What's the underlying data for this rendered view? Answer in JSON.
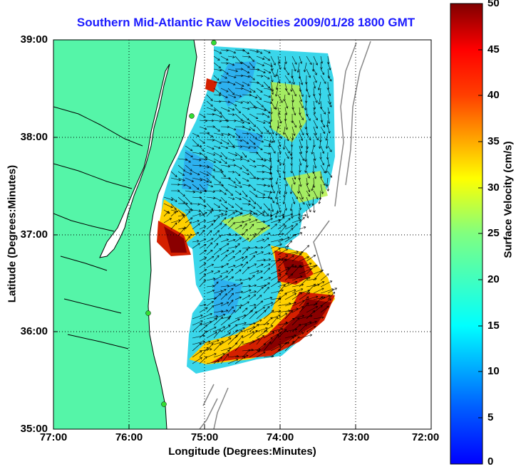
{
  "title": "Southern Mid-Atlantic Raw Velocities 2009/01/28 1800 GMT",
  "x_axis": {
    "label": "Longitude (Degrees:Minutes)",
    "ticks": [
      "77:00",
      "76:00",
      "75:00",
      "74:00",
      "73:00",
      "72:00"
    ]
  },
  "y_axis": {
    "label": "Latitude (Degrees:Minutes)",
    "ticks": [
      "39:00",
      "38:00",
      "37:00",
      "36:00",
      "35:00"
    ]
  },
  "colorbar": {
    "label": "Surface Velocity (cm/s)",
    "ticks": [
      "50",
      "45",
      "40",
      "35",
      "30",
      "25",
      "20",
      "15",
      "10",
      "5",
      "0"
    ],
    "range": [
      0,
      50
    ],
    "colormap": "jet"
  },
  "map": {
    "lon_range": [
      -77,
      -72
    ],
    "lat_range": [
      35,
      39
    ],
    "land_color": "#55f5a8",
    "grid": "dotted",
    "vector_color": "#000000"
  }
}
